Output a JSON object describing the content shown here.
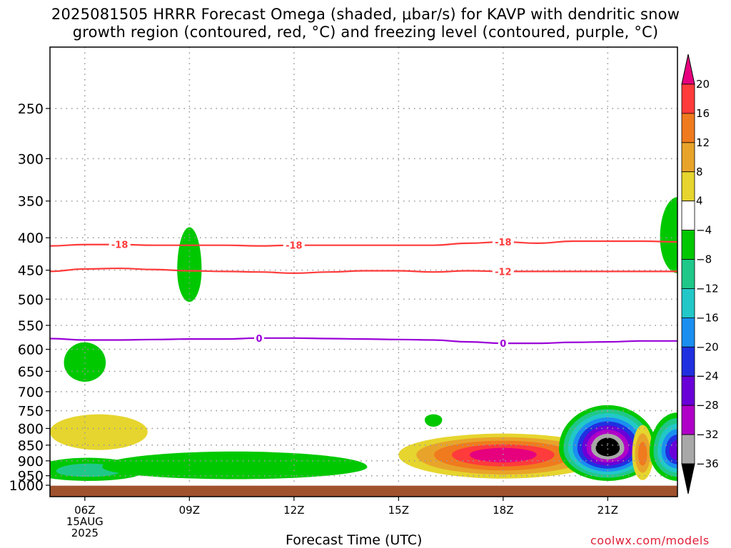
{
  "title_line1": "2025081505 HRRR Forecast Omega (shaded, μbar/s) for KAVP with dendritic snow",
  "title_line2": "growth region (contoured, red, °C) and freezing level (contoured, purple, °C)",
  "credit": "coolwx.com/models",
  "colors": {
    "background": "#ffffff",
    "ground": "#a0522d",
    "dgz_contour": "#ff3b3b",
    "freezing_contour": "#9a00d8",
    "grid": "#9a9a9a"
  },
  "chart_data": {
    "type": "heatmap",
    "xlabel": "Forecast Time (UTC)",
    "x_ticks": [
      "06Z",
      "09Z",
      "12Z",
      "15Z",
      "18Z",
      "21Z"
    ],
    "x_tick_values": [
      6,
      9,
      12,
      15,
      18,
      21
    ],
    "x_date_label": [
      "15AUG",
      "2025"
    ],
    "xlim": [
      5.0,
      23.0
    ],
    "y_ticks": [
      250,
      300,
      350,
      400,
      450,
      500,
      550,
      600,
      650,
      700,
      750,
      800,
      850,
      900,
      950,
      1000
    ],
    "ylim": [
      1025,
      200
    ],
    "y_scale": "log",
    "ground_pressure": 985,
    "colorbar": {
      "labels": [
        "20",
        "16",
        "12",
        "8",
        "4",
        "−4",
        "−8",
        "−12",
        "−16",
        "−20",
        "−24",
        "−28",
        "−32",
        "−36"
      ],
      "bins": [
        {
          "lo": 20,
          "hi": 999,
          "color": "#e6007e"
        },
        {
          "lo": 16,
          "hi": 20,
          "color": "#ff3b3b"
        },
        {
          "lo": 12,
          "hi": 16,
          "color": "#f07a1e"
        },
        {
          "lo": 8,
          "hi": 12,
          "color": "#e8a42a"
        },
        {
          "lo": 4,
          "hi": 8,
          "color": "#e6d52e"
        },
        {
          "lo": -4,
          "hi": 4,
          "color": "#ffffff"
        },
        {
          "lo": -8,
          "hi": -4,
          "color": "#00c800"
        },
        {
          "lo": -12,
          "hi": -8,
          "color": "#1fc888"
        },
        {
          "lo": -16,
          "hi": -12,
          "color": "#22c8c8"
        },
        {
          "lo": -20,
          "hi": -16,
          "color": "#1a8ff0"
        },
        {
          "lo": -24,
          "hi": -20,
          "color": "#2030e0"
        },
        {
          "lo": -28,
          "hi": -24,
          "color": "#6a00d8"
        },
        {
          "lo": -32,
          "hi": -28,
          "color": "#b000c8"
        },
        {
          "lo": -36,
          "hi": -32,
          "color": "#a8a8a8"
        },
        {
          "lo": -999,
          "hi": -36,
          "color": "#000000"
        }
      ]
    },
    "contours": [
      {
        "name": "dgz_-18",
        "label": "-18",
        "color": "#ff3b3b",
        "x": [
          5.0,
          6.0,
          7.0,
          8.0,
          9.0,
          10.0,
          11.0,
          12.0,
          13.0,
          14.0,
          15.0,
          16.0,
          17.0,
          18.0,
          19.0,
          20.0,
          21.0,
          22.0,
          23.0
        ],
        "p": [
          412,
          410,
          410,
          411,
          411,
          411,
          412,
          411,
          411,
          411,
          411,
          411,
          408,
          406,
          408,
          405,
          405,
          405,
          406
        ],
        "labels_at": [
          7.0,
          12.0,
          18.0
        ]
      },
      {
        "name": "dgz_-12",
        "label": "-12",
        "color": "#ff3b3b",
        "x": [
          5.0,
          6.0,
          7.0,
          8.0,
          9.0,
          10.0,
          11.0,
          12.0,
          13.0,
          14.0,
          15.0,
          16.0,
          17.0,
          18.0,
          19.0,
          20.0,
          21.0,
          22.0,
          23.0
        ],
        "p": [
          452,
          448,
          447,
          449,
          451,
          452,
          453,
          455,
          453,
          451,
          451,
          453,
          451,
          452,
          452,
          452,
          452,
          452,
          452
        ],
        "labels_at": [
          18.0
        ]
      },
      {
        "name": "freezing_0",
        "label": "0",
        "color": "#9a00d8",
        "x": [
          5.0,
          6.0,
          7.0,
          8.0,
          9.0,
          10.0,
          11.0,
          12.0,
          13.0,
          14.0,
          15.0,
          16.0,
          17.0,
          18.0,
          19.0,
          20.0,
          21.0,
          22.0,
          23.0
        ],
        "p": [
          577,
          580,
          580,
          579,
          578,
          578,
          576,
          576,
          577,
          578,
          579,
          580,
          584,
          587,
          587,
          585,
          584,
          582,
          582
        ],
        "labels_at": [
          11.0,
          18.0
        ]
      }
    ],
    "omega_features": [
      {
        "name": "ascent-upper-0900",
        "value": -6,
        "x": 9.0,
        "p": 450,
        "rx": 0.35,
        "p_top": 385,
        "p_bot": 505
      },
      {
        "name": "ascent-upper-right-edge",
        "value": -6,
        "x": 23.0,
        "p": 400,
        "rx": 0.5,
        "p_top": 345,
        "p_bot": 455
      },
      {
        "name": "ascent-0600-mid",
        "value": -6,
        "x": 6.0,
        "p": 630,
        "rx": 0.6,
        "p_top": 585,
        "p_bot": 675
      },
      {
        "name": "descent-0630-low",
        "value": 6,
        "x": 6.4,
        "p": 810,
        "rx": 1.4,
        "p_top": 760,
        "p_bot": 865
      },
      {
        "name": "ascent-0600-sfc",
        "value": -10,
        "x": 6.1,
        "p": 935,
        "rx": 1.6,
        "p_top": 890,
        "p_bot": 968
      },
      {
        "name": "ascent-1030-sfc",
        "value": -6,
        "x": 10.3,
        "p": 920,
        "rx": 3.8,
        "p_top": 870,
        "p_bot": 962
      },
      {
        "name": "ascent-1600-small",
        "value": -6,
        "x": 16.0,
        "p": 775,
        "rx": 0.25,
        "p_top": 760,
        "p_bot": 795
      },
      {
        "name": "descent-1800-core",
        "value": 22,
        "x": 18.0,
        "p": 880,
        "rx": 3.0,
        "p_top": 815,
        "p_bot": 960
      },
      {
        "name": "ascent-2100-core",
        "value": -38,
        "x": 21.0,
        "p": 860,
        "rx": 1.4,
        "p_top": 735,
        "p_bot": 968
      },
      {
        "name": "descent-2200-narrow",
        "value": 12,
        "x": 22.0,
        "p": 880,
        "rx": 0.3,
        "p_top": 790,
        "p_bot": 965
      },
      {
        "name": "ascent-2300-edge",
        "value": -26,
        "x": 23.0,
        "p": 870,
        "rx": 0.8,
        "p_top": 755,
        "p_bot": 968
      }
    ]
  }
}
